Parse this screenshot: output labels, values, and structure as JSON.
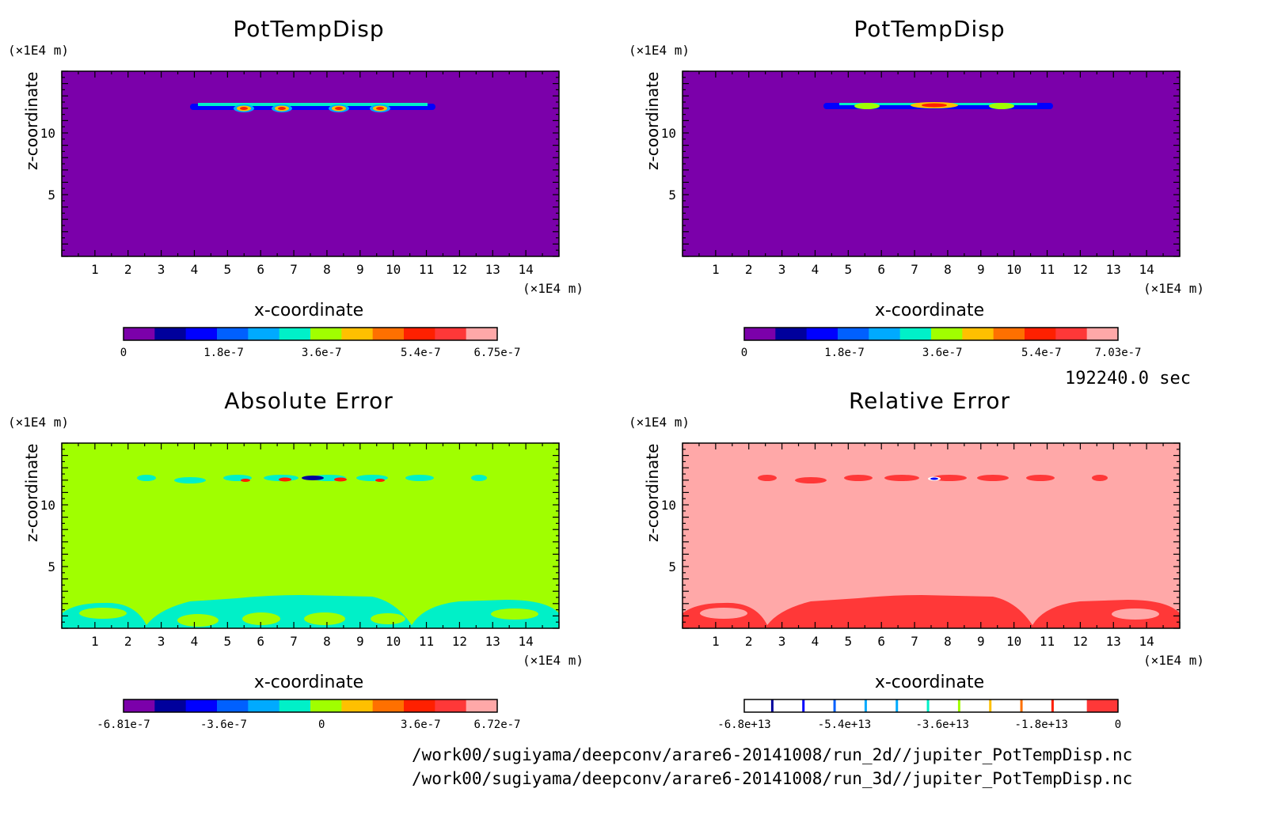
{
  "time_label": "192240.0 sec",
  "files": [
    "/work00/sugiyama/deepconv/arare6-20141008/run_2d//jupiter_PotTempDisp.nc",
    "/work00/sugiyama/deepconv/arare6-20141008/run_3d//jupiter_PotTempDisp.nc"
  ],
  "chart_data": [
    {
      "type": "heatmap",
      "title": "PotTempDisp",
      "xlabel": "x-coordinate",
      "ylabel": "z-coordinate",
      "x_unit": "(×1E4 m)",
      "y_unit": "(×1E4 m)",
      "xlim": [
        0,
        15
      ],
      "ylim": [
        0,
        15
      ],
      "x_ticks": [
        1,
        2,
        3,
        4,
        5,
        6,
        7,
        8,
        9,
        10,
        11,
        12,
        13,
        14
      ],
      "y_ticks": [
        5,
        10
      ],
      "background_color": "#7b00aa",
      "colorbar": {
        "colors": [
          "#7b00aa",
          "#00009c",
          "#0000ff",
          "#0060ff",
          "#00aaff",
          "#00f0c8",
          "#a0ff00",
          "#ffc000",
          "#ff7000",
          "#ff2000",
          "#ff3838",
          "#ffa8a8"
        ],
        "tick_labels": [
          "0",
          "1.8e-7",
          "3.6e-7",
          "5.4e-7",
          "6.75e-7"
        ]
      },
      "features": "thin layer of positive values near z=12; peaks about 5.8, 6.8, 8.2, 9.7"
    },
    {
      "type": "heatmap",
      "title": "PotTempDisp",
      "xlabel": "x-coordinate",
      "ylabel": "z-coordinate",
      "x_unit": "(×1E4 m)",
      "y_unit": "(×1E4 m)",
      "xlim": [
        0,
        15
      ],
      "ylim": [
        0,
        15
      ],
      "x_ticks": [
        1,
        2,
        3,
        4,
        5,
        6,
        7,
        8,
        9,
        10,
        11,
        12,
        13,
        14
      ],
      "y_ticks": [
        5,
        10
      ],
      "background_color": "#7b00aa",
      "colorbar": {
        "colors": [
          "#7b00aa",
          "#00009c",
          "#0000ff",
          "#0060ff",
          "#00aaff",
          "#00f0c8",
          "#a0ff00",
          "#ffc000",
          "#ff7000",
          "#ff2000",
          "#ff3838",
          "#ffa8a8"
        ],
        "tick_labels": [
          "0",
          "1.8e-7",
          "3.6e-7",
          "5.4e-7",
          "7.03e-7"
        ]
      },
      "features": "thin continuous layer near z=12 with maximum near x=7.7"
    },
    {
      "type": "heatmap",
      "title": "Absolute Error",
      "xlabel": "x-coordinate",
      "ylabel": "z-coordinate",
      "x_unit": "(×1E4 m)",
      "y_unit": "(×1E4 m)",
      "xlim": [
        0,
        15
      ],
      "ylim": [
        0,
        15
      ],
      "x_ticks": [
        1,
        2,
        3,
        4,
        5,
        6,
        7,
        8,
        9,
        10,
        11,
        12,
        13,
        14
      ],
      "y_ticks": [
        5,
        10
      ],
      "background_color": "#a0ff00",
      "colorbar": {
        "colors": [
          "#7b00aa",
          "#00009c",
          "#0000ff",
          "#0060ff",
          "#00aaff",
          "#00f0c8",
          "#a0ff00",
          "#ffc000",
          "#ff7000",
          "#ff2000",
          "#ff3838",
          "#ffa8a8"
        ],
        "tick_labels": [
          "-6.81e-7",
          "-3.6e-7",
          "0",
          "3.6e-7",
          "6.72e-7"
        ]
      },
      "features": "near-zero field with cyan bottom layer below z=2.6 and error band near z=12"
    },
    {
      "type": "heatmap",
      "title": "Relative Error",
      "xlabel": "x-coordinate",
      "ylabel": "z-coordinate",
      "x_unit": "(×1E4 m)",
      "y_unit": "(×1E4 m)",
      "xlim": [
        0,
        15
      ],
      "ylim": [
        0,
        15
      ],
      "x_ticks": [
        1,
        2,
        3,
        4,
        5,
        6,
        7,
        8,
        9,
        10,
        11,
        12,
        13,
        14
      ],
      "y_ticks": [
        5,
        10
      ],
      "background_color": "#ffa8a8",
      "colorbar": {
        "colors": [
          "#ffffff",
          "#ffffff",
          "#ffffff",
          "#ffffff",
          "#ffffff",
          "#ffffff",
          "#ffffff",
          "#ffffff",
          "#ffffff",
          "#ffffff",
          "#ffffff",
          "#ff3838"
        ],
        "line_colors": [
          "#00009c",
          "#0000ff",
          "#0060ff",
          "#00aaff",
          "#00aaff",
          "#00f0c8",
          "#a0ff00",
          "#ffc000",
          "#ff7000",
          "#ff2000"
        ],
        "tick_labels": [
          "-6.8e+13",
          "-5.4e+13",
          "-3.6e+13",
          "-1.8e+13",
          "0"
        ]
      },
      "features": "red bottom layer below z=2.6 and red band near z=12"
    }
  ]
}
